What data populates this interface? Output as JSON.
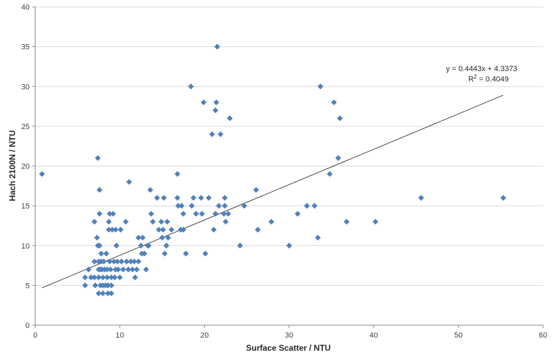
{
  "chart_data": {
    "type": "scatter",
    "title": "",
    "xlabel": "Surface Scatter / NTU",
    "ylabel": "Hach 2100N  / NTU",
    "xlim": [
      0,
      60
    ],
    "ylim": [
      0,
      40
    ],
    "x_ticks": [
      "0",
      "10",
      "20",
      "30",
      "40",
      "50",
      "60"
    ],
    "y_ticks": [
      "0",
      "5",
      "10",
      "15",
      "20",
      "25",
      "30",
      "35",
      "40"
    ],
    "grid": "horizontal",
    "legend": "none",
    "marker_color": "#4F81BD",
    "trendline": {
      "slope": 0.4443,
      "intercept": 4.3373,
      "x_range": [
        0.8,
        55.3
      ],
      "color": "#404040",
      "equation_label": "y = 0.4443x + 4.3373",
      "r2_label_prefix": "R",
      "r2_label_sup": "2",
      "r2_label_suffix": " = 0.4049"
    },
    "points": [
      [
        0.8,
        19
      ],
      [
        5.9,
        5
      ],
      [
        5.9,
        6
      ],
      [
        6.3,
        7
      ],
      [
        6.6,
        6
      ],
      [
        7.0,
        8
      ],
      [
        7.0,
        6
      ],
      [
        7.0,
        13
      ],
      [
        7.1,
        5
      ],
      [
        7.3,
        11
      ],
      [
        7.4,
        10
      ],
      [
        7.4,
        21
      ],
      [
        7.5,
        4
      ],
      [
        7.5,
        8
      ],
      [
        7.5,
        7
      ],
      [
        7.5,
        6
      ],
      [
        7.6,
        17
      ],
      [
        7.6,
        14
      ],
      [
        7.6,
        10
      ],
      [
        7.7,
        5
      ],
      [
        7.7,
        7
      ],
      [
        7.8,
        9
      ],
      [
        7.8,
        8
      ],
      [
        7.9,
        7
      ],
      [
        8.0,
        6
      ],
      [
        8.0,
        5
      ],
      [
        8.0,
        4
      ],
      [
        8.1,
        8
      ],
      [
        8.2,
        7
      ],
      [
        8.3,
        5
      ],
      [
        8.4,
        9
      ],
      [
        8.5,
        6
      ],
      [
        8.5,
        7
      ],
      [
        8.6,
        4
      ],
      [
        8.6,
        5
      ],
      [
        8.7,
        12
      ],
      [
        8.7,
        13
      ],
      [
        8.8,
        14
      ],
      [
        8.8,
        8
      ],
      [
        8.9,
        7
      ],
      [
        9.0,
        6
      ],
      [
        9.0,
        5
      ],
      [
        9.0,
        4
      ],
      [
        9.1,
        12
      ],
      [
        9.2,
        14
      ],
      [
        9.3,
        8
      ],
      [
        9.4,
        6
      ],
      [
        9.5,
        7
      ],
      [
        9.5,
        12
      ],
      [
        9.6,
        10
      ],
      [
        9.7,
        8
      ],
      [
        9.8,
        7
      ],
      [
        10.0,
        6
      ],
      [
        10.1,
        12
      ],
      [
        10.2,
        8
      ],
      [
        10.4,
        7
      ],
      [
        10.7,
        13
      ],
      [
        10.8,
        8
      ],
      [
        11.0,
        7
      ],
      [
        11.1,
        18
      ],
      [
        11.3,
        8
      ],
      [
        11.5,
        7
      ],
      [
        11.7,
        8
      ],
      [
        11.8,
        6
      ],
      [
        12.0,
        7
      ],
      [
        12.2,
        8
      ],
      [
        12.2,
        11
      ],
      [
        12.5,
        10
      ],
      [
        12.6,
        9
      ],
      [
        12.7,
        11
      ],
      [
        12.9,
        9
      ],
      [
        13.1,
        7
      ],
      [
        13.3,
        10
      ],
      [
        13.4,
        10
      ],
      [
        13.6,
        17
      ],
      [
        13.7,
        14
      ],
      [
        13.9,
        13
      ],
      [
        14.4,
        16
      ],
      [
        14.6,
        12
      ],
      [
        14.9,
        13
      ],
      [
        15.0,
        11
      ],
      [
        15.1,
        12
      ],
      [
        15.2,
        16
      ],
      [
        15.3,
        9
      ],
      [
        15.5,
        10
      ],
      [
        15.6,
        13
      ],
      [
        15.7,
        11
      ],
      [
        16.1,
        12
      ],
      [
        16.8,
        19
      ],
      [
        16.8,
        16
      ],
      [
        16.9,
        15
      ],
      [
        17.2,
        12
      ],
      [
        17.3,
        15
      ],
      [
        17.5,
        14
      ],
      [
        17.5,
        12
      ],
      [
        17.8,
        9
      ],
      [
        18.4,
        30
      ],
      [
        18.5,
        15
      ],
      [
        18.7,
        16
      ],
      [
        19.0,
        14
      ],
      [
        19.6,
        16
      ],
      [
        19.7,
        14
      ],
      [
        19.9,
        28
      ],
      [
        20.1,
        9
      ],
      [
        20.5,
        16
      ],
      [
        20.9,
        24
      ],
      [
        21.1,
        12
      ],
      [
        21.3,
        14
      ],
      [
        21.3,
        27
      ],
      [
        21.4,
        28
      ],
      [
        21.5,
        35
      ],
      [
        21.7,
        15
      ],
      [
        21.9,
        24
      ],
      [
        22.3,
        14
      ],
      [
        22.4,
        16
      ],
      [
        22.4,
        15
      ],
      [
        22.5,
        13
      ],
      [
        22.8,
        14
      ],
      [
        23.0,
        26
      ],
      [
        24.2,
        10
      ],
      [
        24.7,
        15
      ],
      [
        26.1,
        17
      ],
      [
        26.3,
        12
      ],
      [
        27.9,
        13
      ],
      [
        30.0,
        10
      ],
      [
        31.0,
        14
      ],
      [
        32.1,
        15
      ],
      [
        33.0,
        15
      ],
      [
        33.4,
        11
      ],
      [
        33.7,
        30
      ],
      [
        34.8,
        19
      ],
      [
        35.3,
        28
      ],
      [
        35.8,
        21
      ],
      [
        36.0,
        26
      ],
      [
        36.8,
        13
      ],
      [
        40.2,
        13
      ],
      [
        45.6,
        16
      ],
      [
        55.3,
        16
      ]
    ]
  }
}
